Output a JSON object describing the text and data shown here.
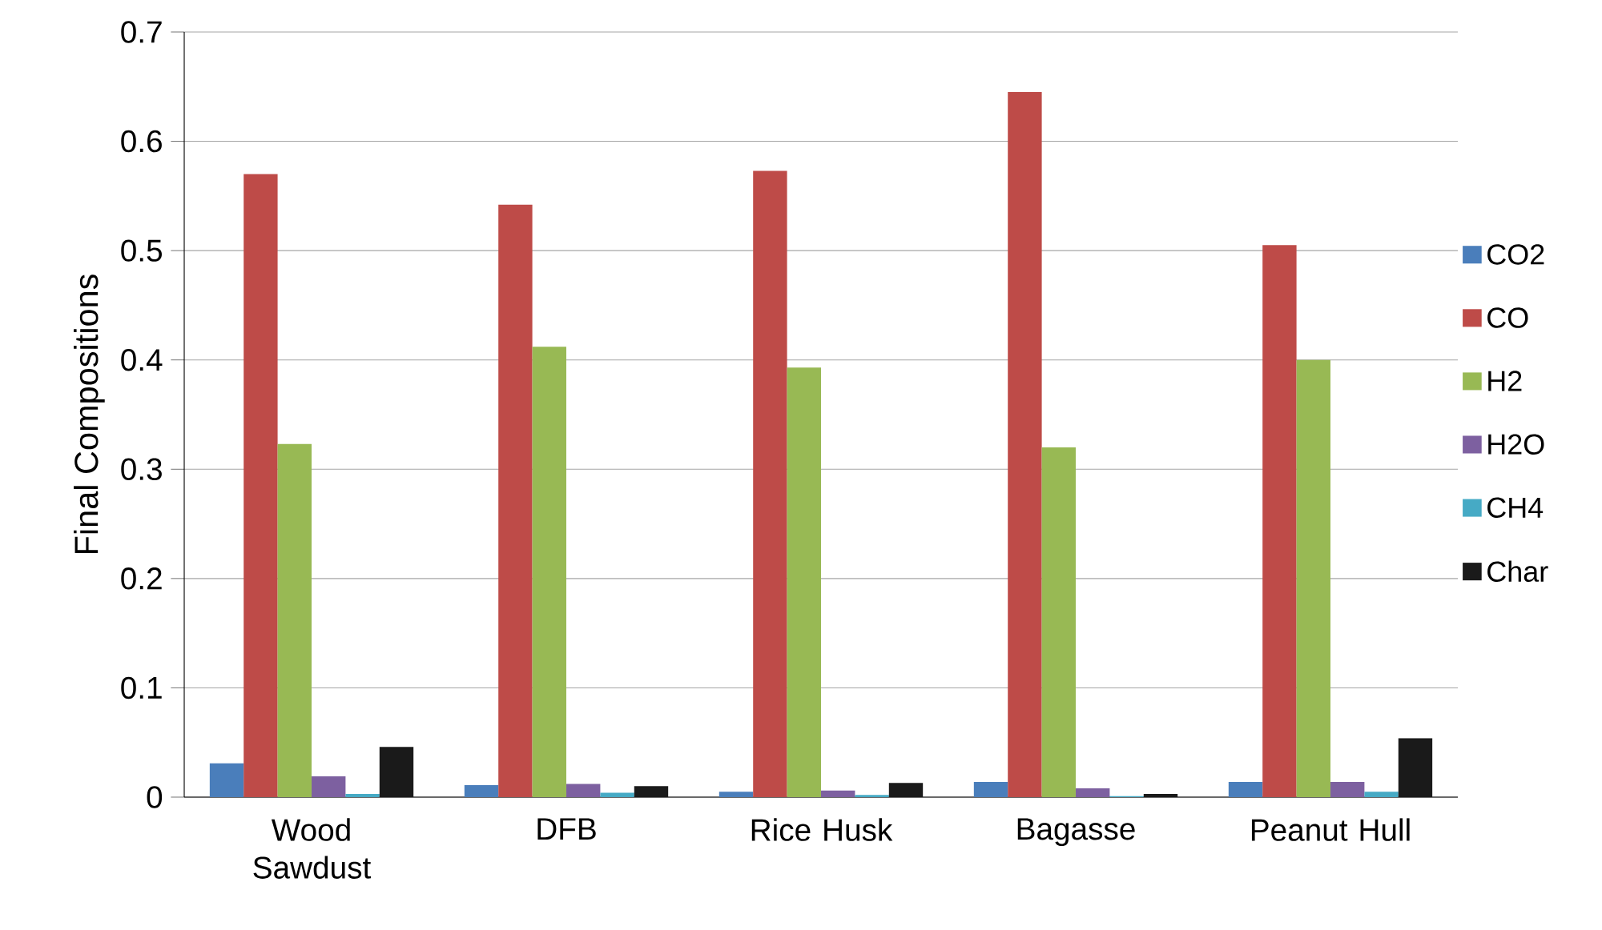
{
  "chart_data": {
    "type": "bar",
    "ylabel": "Final Compositions",
    "categories": [
      "Wood Sawdust",
      "DFB",
      "Rice Husk",
      "Bagasse",
      "Peanut Hull"
    ],
    "series": [
      {
        "name": "CO2",
        "color": "#4a7ebb",
        "values": [
          0.031,
          0.011,
          0.005,
          0.014,
          0.014
        ]
      },
      {
        "name": "CO",
        "color": "#be4b48",
        "values": [
          0.57,
          0.542,
          0.573,
          0.645,
          0.505
        ]
      },
      {
        "name": "H2",
        "color": "#98b954",
        "values": [
          0.323,
          0.412,
          0.393,
          0.32,
          0.4
        ]
      },
      {
        "name": "H2O",
        "color": "#7d60a0",
        "values": [
          0.019,
          0.012,
          0.006,
          0.008,
          0.014
        ]
      },
      {
        "name": "CH4",
        "color": "#46aac5",
        "values": [
          0.003,
          0.004,
          0.002,
          0.001,
          0.005
        ]
      },
      {
        "name": "Char",
        "color": "#1a1a1a",
        "values": [
          0.046,
          0.01,
          0.013,
          0.003,
          0.054
        ]
      }
    ],
    "ylim": [
      0,
      0.7
    ],
    "yticks": [
      0,
      0.1,
      0.2,
      0.3,
      0.4,
      0.5,
      0.6,
      0.7
    ],
    "grid": "y",
    "legend": "right"
  }
}
